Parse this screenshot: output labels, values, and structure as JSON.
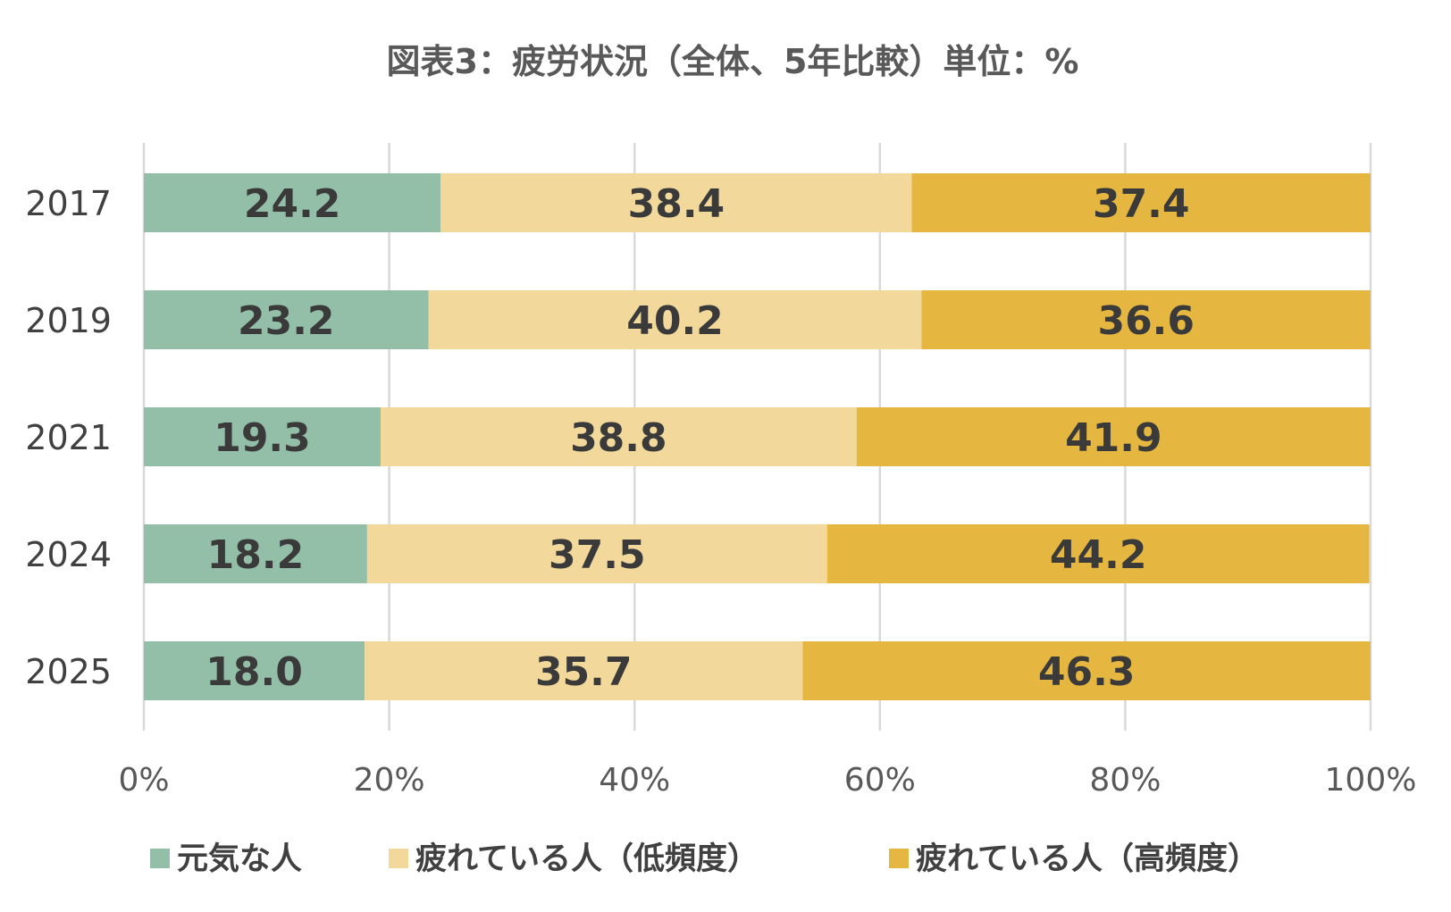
{
  "chart_data": {
    "type": "bar",
    "orientation": "horizontal",
    "stacked": true,
    "title": "図表3：疲労状況（全体、5年比較）単位：%",
    "categories": [
      "2017",
      "2019",
      "2021",
      "2024",
      "2025"
    ],
    "series": [
      {
        "name": "元気な人",
        "color": "#93bfa8",
        "values": [
          24.2,
          23.2,
          19.3,
          18.2,
          18.0
        ]
      },
      {
        "name": "疲れている人（低頻度）",
        "color": "#f2d99b",
        "values": [
          38.4,
          40.2,
          38.8,
          37.5,
          35.7
        ]
      },
      {
        "name": "疲れている人（高頻度）",
        "color": "#e6b740",
        "values": [
          37.4,
          36.6,
          41.9,
          44.2,
          46.3
        ]
      }
    ],
    "xlim": [
      0,
      100
    ],
    "x_ticks": [
      "0%",
      "20%",
      "40%",
      "60%",
      "80%",
      "100%"
    ],
    "grid": true,
    "legend_position": "bottom"
  }
}
